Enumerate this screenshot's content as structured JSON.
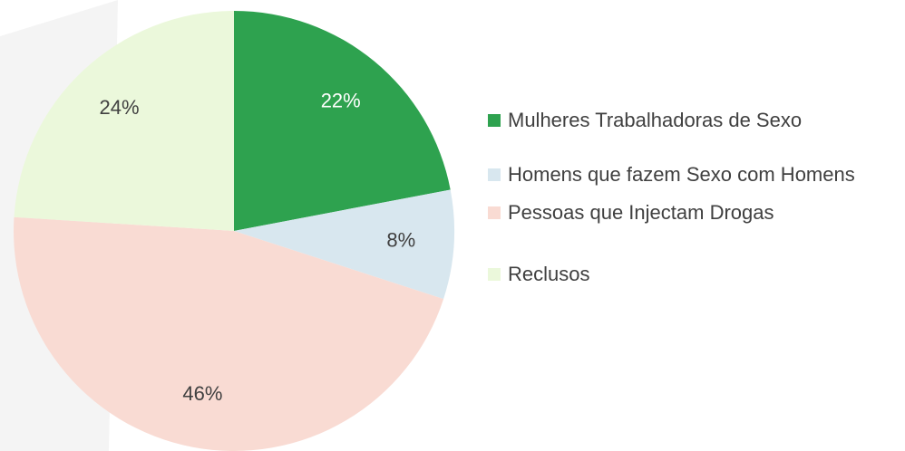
{
  "chart_data": {
    "type": "pie",
    "categories": [
      "Mulheres Trabalhadoras de Sexo",
      "Homens que fazem Sexo com Homens",
      "Pessoas que Injectam Drogas",
      "Reclusos"
    ],
    "values": [
      22,
      8,
      46,
      24
    ],
    "value_labels": [
      "22%",
      "8%",
      "46%",
      "24%"
    ],
    "colors": [
      "#2ea24f",
      "#d8e7ef",
      "#f9dbd3",
      "#ebf8db"
    ],
    "legend": "right"
  }
}
